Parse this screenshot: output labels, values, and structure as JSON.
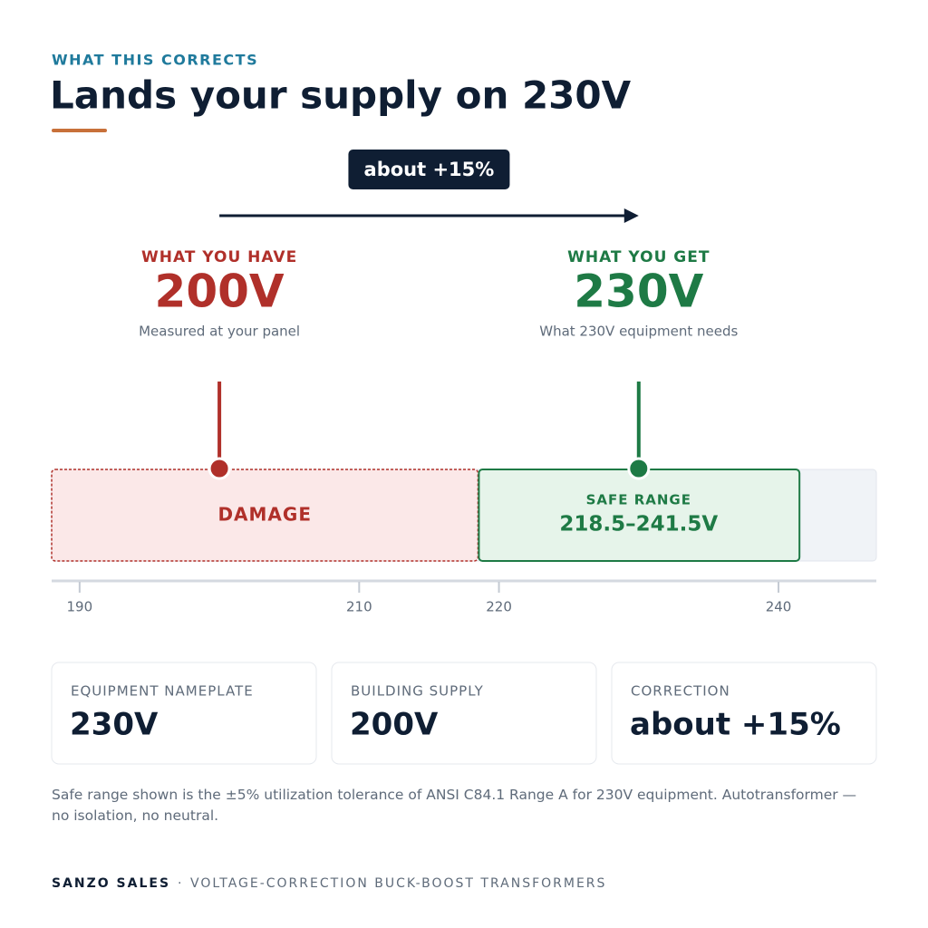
{
  "eyebrow": "WHAT THIS CORRECTS",
  "title": "Lands your supply on 230V",
  "change_badge": "about +15%",
  "have": {
    "heading": "WHAT YOU HAVE",
    "value": 200,
    "label": "200V",
    "caption": "Measured at your panel"
  },
  "get": {
    "heading": "WHAT YOU GET",
    "value": 230,
    "label": "230V",
    "caption": "What 230V equipment needs"
  },
  "scale": {
    "xlim": [
      188,
      247
    ],
    "xticks": [
      190,
      210,
      220,
      240
    ],
    "damage": {
      "label": "DAMAGE"
    },
    "safe_range": {
      "heading": "SAFE RANGE",
      "label": "218.5–241.5V",
      "low": 218.5,
      "high": 241.5
    }
  },
  "stats": [
    {
      "label": "EQUIPMENT NAMEPLATE",
      "value": "230V"
    },
    {
      "label": "BUILDING SUPPLY",
      "value": "200V"
    },
    {
      "label": "CORRECTION",
      "value": "about +15%"
    }
  ],
  "footnote": "Safe range shown is the ±5% utilization tolerance of ANSI C84.1 Range A for 230V equipment. Autotransformer — no isolation, no neutral.",
  "footer": {
    "brand": "SANZO SALES",
    "separator": "·",
    "tagline": "VOLTAGE-CORRECTION BUCK-BOOST TRANSFORMERS"
  }
}
